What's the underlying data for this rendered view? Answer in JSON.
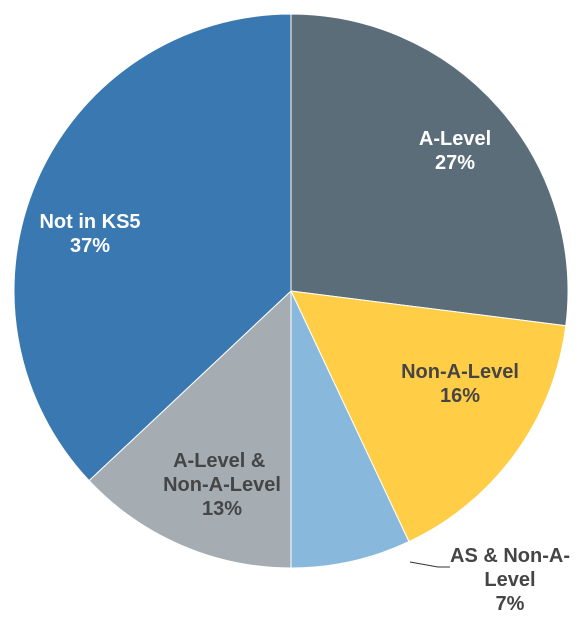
{
  "chart_data": {
    "type": "pie",
    "categories": [
      "A-Level",
      "Non-A-Level",
      "AS & Non-A-Level",
      "A-Level & Non-A-Level",
      "Not in KS5"
    ],
    "values": [
      27,
      16,
      7,
      13,
      37
    ],
    "value_labels": [
      "27%",
      "16%",
      "7%",
      "13%",
      "37%"
    ],
    "colors": [
      "#5a6d79",
      "#ffcd46",
      "#88b9dd",
      "#a5adb3",
      "#3a78b1"
    ]
  }
}
